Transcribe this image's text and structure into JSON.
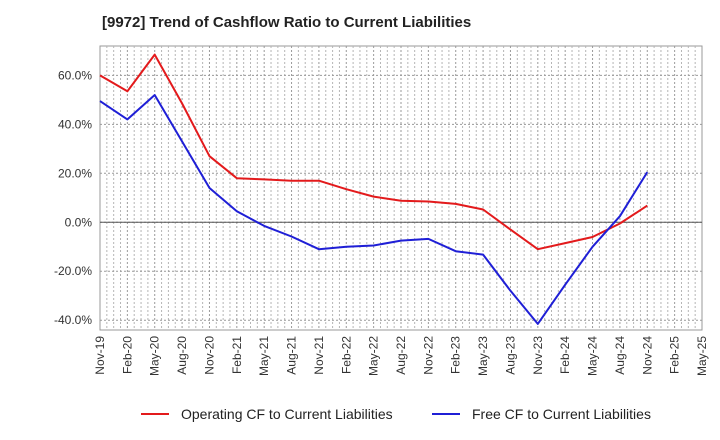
{
  "title": "[9972]  Trend of Cashflow Ratio to Current Liabilities",
  "chart_data": {
    "type": "line",
    "title": "[9972]  Trend of Cashflow Ratio to Current Liabilities",
    "xlabel": "",
    "ylabel": "",
    "ylim": [
      -44,
      72
    ],
    "yticks": [
      -40,
      -20,
      0,
      20,
      40,
      60
    ],
    "y_tick_labels": [
      "-40.0%",
      "-20.0%",
      "0.0%",
      "20.0%",
      "40.0%",
      "60.0%"
    ],
    "x": [
      "Nov-19",
      "Feb-20",
      "May-20",
      "Aug-20",
      "Nov-20",
      "Feb-21",
      "May-21",
      "Aug-21",
      "Nov-21",
      "Feb-22",
      "May-22",
      "Aug-22",
      "Nov-22",
      "Feb-23",
      "May-23",
      "Aug-23",
      "Nov-23",
      "Feb-24",
      "May-24",
      "Aug-24",
      "Nov-24",
      "Feb-25",
      "May-25"
    ],
    "grid": true,
    "legend_position": "bottom",
    "series": [
      {
        "name": "Operating CF to Current Liabilities",
        "color": "#e31a1c",
        "values": [
          60,
          53.5,
          68.5,
          48.5,
          27,
          18,
          17.5,
          17,
          17,
          13.5,
          10.5,
          8.8,
          8.5,
          7.5,
          5.2,
          -3,
          -11,
          -8.5,
          -6,
          -0.5,
          6.8,
          null,
          null
        ]
      },
      {
        "name": "Free CF to Current Liabilities",
        "color": "#1f1fd6",
        "values": [
          49.5,
          42,
          52,
          33,
          14,
          4.5,
          -1.5,
          -5.8,
          -11,
          -10,
          -9.5,
          -7.5,
          -6.8,
          -11.8,
          -13.2,
          -28,
          -41.5,
          -25.5,
          -10,
          2.5,
          20.5,
          null,
          null
        ]
      }
    ]
  }
}
